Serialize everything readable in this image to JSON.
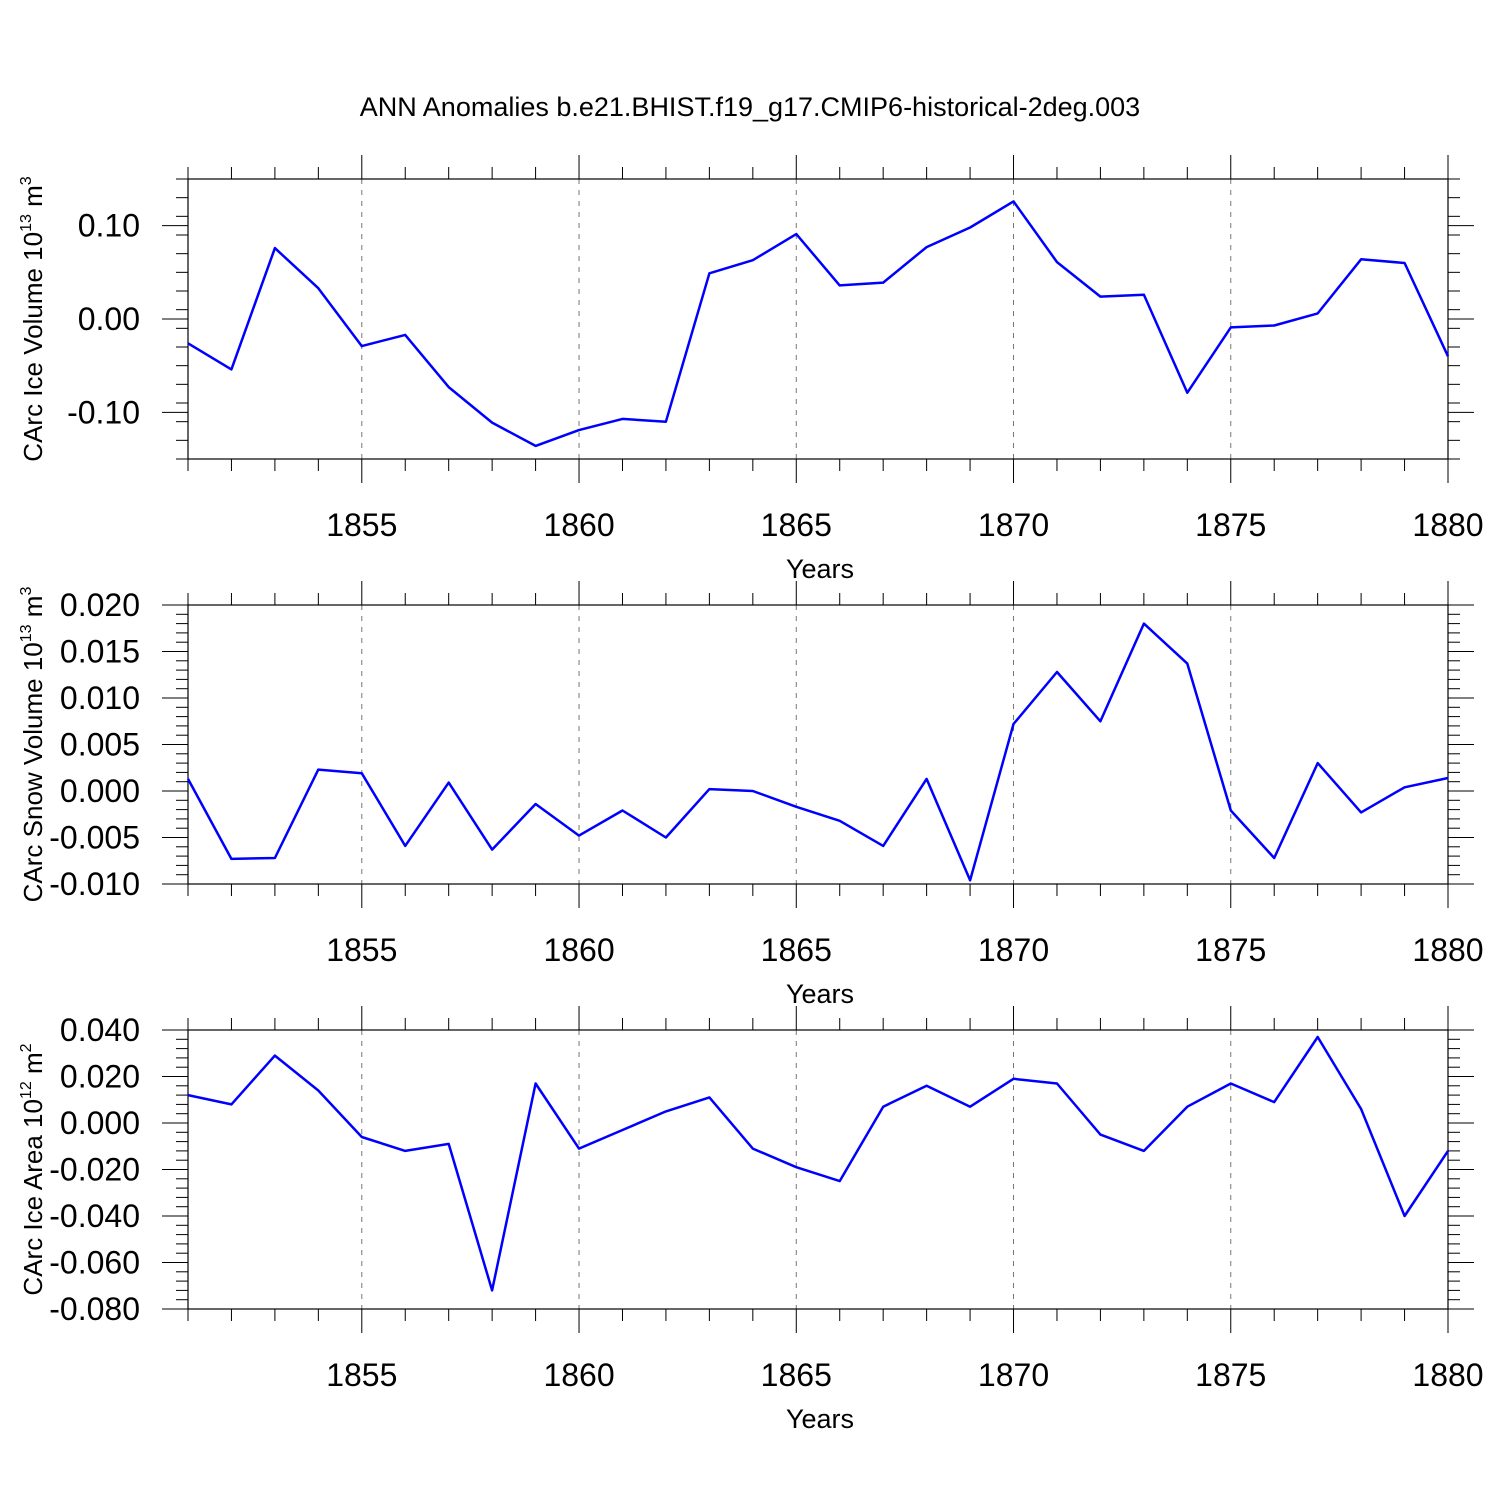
{
  "figure_title": "ANN Anomalies b.e21.BHIST.f19_g17.CMIP6-historical-2deg.003",
  "line_color": "#0000ff",
  "chart_data": [
    {
      "type": "line",
      "id": "ice-volume",
      "ylabel_prefix": "CArc Ice Volume 10",
      "ylabel_exp": "13",
      "ylabel_unit": " m",
      "ylabel_unit_exp": "3",
      "xlabel": "Years",
      "xlim": [
        1851,
        1880
      ],
      "ylim": [
        -0.15,
        0.15
      ],
      "x_major_ticks": [
        1855,
        1860,
        1865,
        1870,
        1875,
        1880
      ],
      "x_tick_labels": [
        "1855",
        "1860",
        "1865",
        "1870",
        "1875",
        "1880"
      ],
      "y_major_ticks": [
        -0.1,
        0.0,
        0.1
      ],
      "y_tick_labels": [
        "-0.10",
        "0.00",
        "0.10"
      ],
      "y_minor_step": 0.02,
      "x": [
        1851,
        1852,
        1853,
        1854,
        1855,
        1856,
        1857,
        1858,
        1859,
        1860,
        1861,
        1862,
        1863,
        1864,
        1865,
        1866,
        1867,
        1868,
        1869,
        1870,
        1871,
        1872,
        1873,
        1874,
        1875,
        1876,
        1877,
        1878,
        1879,
        1880
      ],
      "y": [
        -0.026,
        -0.054,
        0.076,
        0.033,
        -0.029,
        -0.017,
        -0.073,
        -0.111,
        -0.136,
        -0.119,
        -0.107,
        -0.11,
        0.049,
        0.063,
        0.091,
        0.036,
        0.039,
        0.077,
        0.098,
        0.126,
        0.061,
        0.024,
        0.026,
        -0.079,
        -0.009,
        -0.007,
        0.006,
        0.064,
        0.06,
        -0.04
      ]
    },
    {
      "type": "line",
      "id": "snow-volume",
      "ylabel_prefix": "CArc Snow Volume 10",
      "ylabel_exp": "13",
      "ylabel_unit": " m",
      "ylabel_unit_exp": "3",
      "xlabel": "Years",
      "xlim": [
        1851,
        1880
      ],
      "ylim": [
        -0.01,
        0.02
      ],
      "x_major_ticks": [
        1855,
        1860,
        1865,
        1870,
        1875,
        1880
      ],
      "x_tick_labels": [
        "1855",
        "1860",
        "1865",
        "1870",
        "1875",
        "1880"
      ],
      "y_major_ticks": [
        -0.01,
        -0.005,
        0.0,
        0.005,
        0.01,
        0.015,
        0.02
      ],
      "y_tick_labels": [
        "-0.010",
        "-0.005",
        "0.000",
        "0.005",
        "0.010",
        "0.015",
        "0.020"
      ],
      "y_minor_step": 0.001,
      "x": [
        1851,
        1852,
        1853,
        1854,
        1855,
        1856,
        1857,
        1858,
        1859,
        1860,
        1861,
        1862,
        1863,
        1864,
        1865,
        1866,
        1867,
        1868,
        1869,
        1870,
        1871,
        1872,
        1873,
        1874,
        1875,
        1876,
        1877,
        1878,
        1879,
        1880
      ],
      "y": [
        0.0013,
        -0.0073,
        -0.0072,
        0.0023,
        0.0019,
        -0.0059,
        0.0009,
        -0.0063,
        -0.0014,
        -0.0048,
        -0.0021,
        -0.005,
        0.0002,
        0.0,
        -0.0017,
        -0.0032,
        -0.0059,
        0.0013,
        -0.0096,
        0.0072,
        0.0128,
        0.0075,
        0.018,
        0.0137,
        -0.0021,
        -0.0072,
        0.003,
        -0.0023,
        0.0004,
        0.0014
      ]
    },
    {
      "type": "line",
      "id": "ice-area",
      "ylabel_prefix": "CArc Ice Area 10",
      "ylabel_exp": "12",
      "ylabel_unit": " m",
      "ylabel_unit_exp": "2",
      "xlabel": "Years",
      "xlim": [
        1851,
        1880
      ],
      "ylim": [
        -0.08,
        0.04
      ],
      "x_major_ticks": [
        1855,
        1860,
        1865,
        1870,
        1875,
        1880
      ],
      "x_tick_labels": [
        "1855",
        "1860",
        "1865",
        "1870",
        "1875",
        "1880"
      ],
      "y_major_ticks": [
        -0.08,
        -0.06,
        -0.04,
        -0.02,
        0.0,
        0.02,
        0.04
      ],
      "y_tick_labels": [
        "-0.080",
        "-0.060",
        "-0.040",
        "-0.020",
        "0.000",
        "0.020",
        "0.040"
      ],
      "y_minor_step": 0.004,
      "x": [
        1851,
        1852,
        1853,
        1854,
        1855,
        1856,
        1857,
        1858,
        1859,
        1860,
        1861,
        1862,
        1863,
        1864,
        1865,
        1866,
        1867,
        1868,
        1869,
        1870,
        1871,
        1872,
        1873,
        1874,
        1875,
        1876,
        1877,
        1878,
        1879,
        1880
      ],
      "y": [
        0.012,
        0.008,
        0.029,
        0.014,
        -0.006,
        -0.012,
        -0.009,
        -0.072,
        0.017,
        -0.011,
        -0.003,
        0.005,
        0.011,
        -0.011,
        -0.019,
        -0.025,
        0.007,
        0.016,
        0.007,
        0.019,
        0.017,
        -0.005,
        -0.012,
        0.007,
        0.017,
        0.009,
        0.037,
        0.006,
        -0.04,
        -0.012
      ]
    }
  ]
}
